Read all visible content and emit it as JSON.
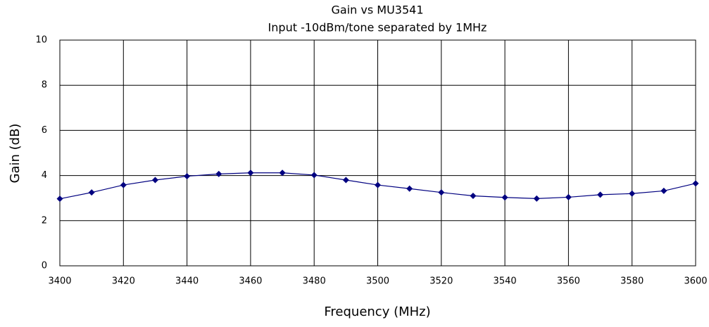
{
  "chart_data": {
    "type": "line",
    "title": "Gain vs MU3541",
    "subtitle": "Input -10dBm/tone separated by 1MHz",
    "x_label": "Frequency (MHz)",
    "y_label": "Gain (dB)",
    "x": [
      3400,
      3410,
      3420,
      3430,
      3440,
      3450,
      3460,
      3470,
      3480,
      3490,
      3500,
      3510,
      3520,
      3530,
      3540,
      3550,
      3560,
      3570,
      3580,
      3590,
      3600
    ],
    "values": [
      2.97,
      3.25,
      3.58,
      3.8,
      3.97,
      4.07,
      4.12,
      4.12,
      4.02,
      3.8,
      3.58,
      3.42,
      3.25,
      3.1,
      3.03,
      2.98,
      3.04,
      3.15,
      3.2,
      3.32,
      3.65
    ],
    "color": "#000080",
    "xlim": [
      3400,
      3600
    ],
    "xticks": [
      3400,
      3420,
      3440,
      3460,
      3480,
      3500,
      3520,
      3540,
      3560,
      3580,
      3600
    ],
    "ylim": [
      0,
      10
    ],
    "yticks": [
      0,
      2,
      4,
      6,
      8,
      10
    ],
    "grid": true
  }
}
